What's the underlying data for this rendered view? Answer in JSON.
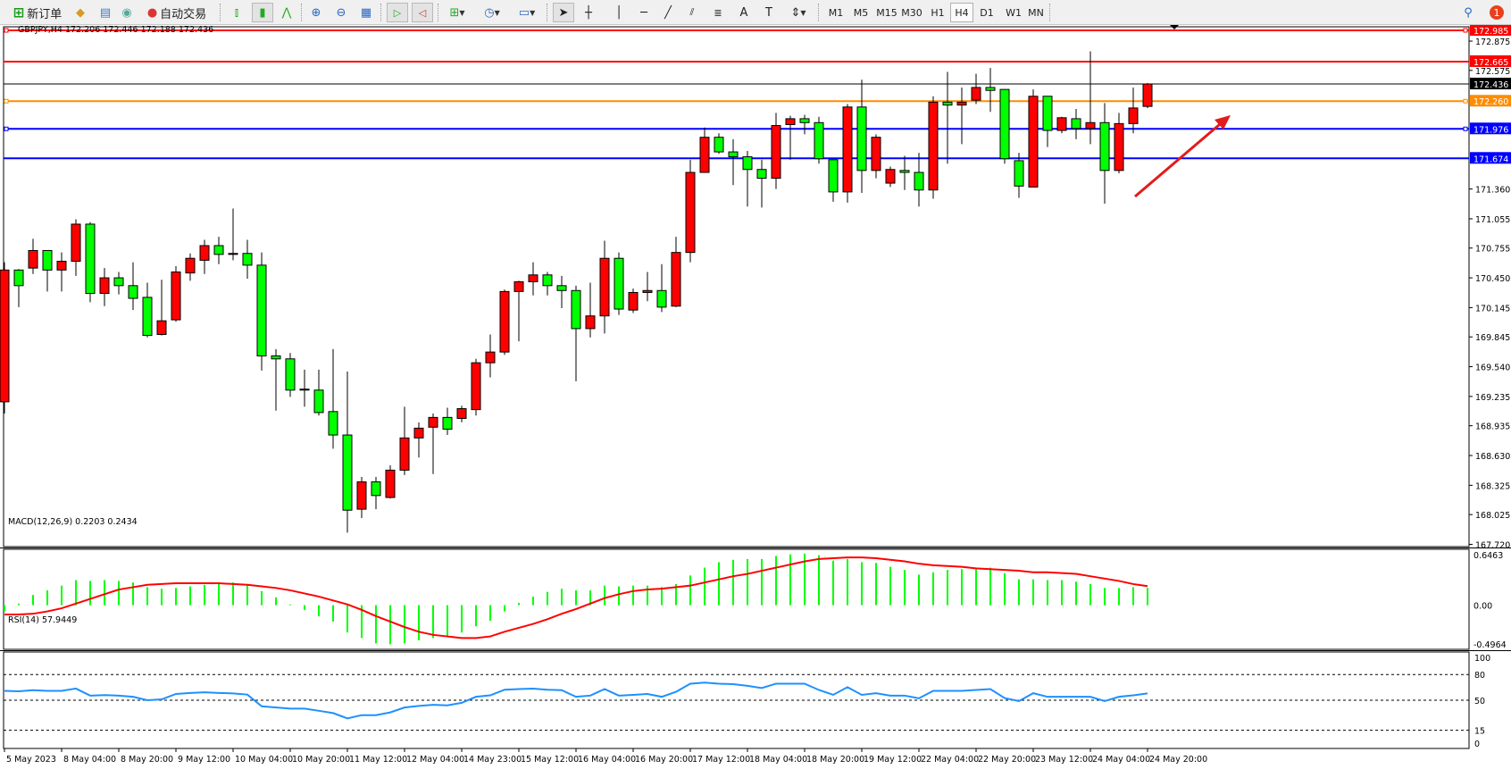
{
  "toolbar": {
    "new_order": "新订单",
    "auto_trading": "自动交易",
    "icons": [
      "new-order-icon",
      "metaeditor-icon",
      "history-icon",
      "signals-icon",
      "auto-trading-icon",
      "bar-chart-icon",
      "candlestick-icon",
      "line-chart-icon",
      "zoom-in-icon",
      "zoom-out-icon",
      "tile-windows-icon",
      "autoscroll-icon",
      "chart-shift-icon",
      "indicators-icon",
      "periods-icon",
      "templates-icon",
      "cursor-icon",
      "crosshair-icon",
      "vertical-line-icon",
      "horizontal-line-icon",
      "trendline-icon",
      "equidistant-channel-icon",
      "fibonacci-icon",
      "text-icon",
      "text-label-icon",
      "arrows-icon",
      "search-icon",
      "notifications-icon"
    ],
    "timeframes": [
      "M1",
      "M5",
      "M15",
      "M30",
      "H1",
      "H4",
      "D1",
      "W1",
      "MN"
    ],
    "selected_timeframe": "H4",
    "notification_count": "1"
  },
  "chart": {
    "header": "GBPJPY,H4  172.206 172.446 172.188 172.436",
    "up_color": "#ff0000",
    "down_color": "#00ff00",
    "price_ticks": [
      "172.875",
      "172.575",
      "171.360",
      "171.055",
      "170.755",
      "170.450",
      "170.145",
      "169.845",
      "169.540",
      "169.235",
      "168.935",
      "168.630",
      "168.325",
      "168.025",
      "167.720"
    ],
    "levels": [
      {
        "price": 172.985,
        "label": "172.985",
        "color": "#ff0000"
      },
      {
        "price": 172.665,
        "label": "172.665",
        "color": "#ff0000"
      },
      {
        "price": 172.436,
        "label": "172.436",
        "color": "#000000"
      },
      {
        "price": 172.26,
        "label": "172.260",
        "color": "#ff8c00"
      },
      {
        "price": 171.976,
        "label": "171.976",
        "color": "#0000ff"
      },
      {
        "price": 171.674,
        "label": "171.674",
        "color": "#0000ff"
      }
    ],
    "time_labels": [
      "5 May 2023",
      "8 May 04:00",
      "8 May 20:00",
      "9 May 12:00",
      "10 May 04:00",
      "10 May 20:00",
      "11 May 12:00",
      "12 May 04:00",
      "14 May 23:00",
      "15 May 12:00",
      "16 May 04:00",
      "16 May 20:00",
      "17 May 12:00",
      "18 May 04:00",
      "18 May 20:00",
      "19 May 12:00",
      "22 May 04:00",
      "22 May 20:00",
      "23 May 12:00",
      "24 May 04:00",
      "24 May 20:00"
    ]
  },
  "chart_data": [
    {
      "type": "candlestick",
      "symbol": "GBPJPY",
      "timeframe": "H4",
      "ylim": [
        167.72,
        172.985
      ],
      "ohlc": [
        [
          169.18,
          170.61,
          169.06,
          170.53
        ],
        [
          170.53,
          170.54,
          170.15,
          170.37
        ],
        [
          170.55,
          170.85,
          170.49,
          170.73
        ],
        [
          170.73,
          170.73,
          170.31,
          170.53
        ],
        [
          170.53,
          170.71,
          170.31,
          170.62
        ],
        [
          170.62,
          171.05,
          170.47,
          171.0
        ],
        [
          171.0,
          171.02,
          170.2,
          170.29
        ],
        [
          170.29,
          170.55,
          170.16,
          170.45
        ],
        [
          170.45,
          170.51,
          170.28,
          170.37
        ],
        [
          170.37,
          170.61,
          170.12,
          170.24
        ],
        [
          170.25,
          170.4,
          169.84,
          169.86
        ],
        [
          169.87,
          170.43,
          169.86,
          170.01
        ],
        [
          170.02,
          170.57,
          170.0,
          170.51
        ],
        [
          170.5,
          170.7,
          170.42,
          170.65
        ],
        [
          170.63,
          170.84,
          170.49,
          170.78
        ],
        [
          170.78,
          170.87,
          170.59,
          170.69
        ],
        [
          170.69,
          171.16,
          170.63,
          170.7
        ],
        [
          170.7,
          170.84,
          170.44,
          170.58
        ],
        [
          170.58,
          170.71,
          169.5,
          169.65
        ],
        [
          169.65,
          169.72,
          169.09,
          169.62
        ],
        [
          169.62,
          169.68,
          169.23,
          169.3
        ],
        [
          169.31,
          169.51,
          169.13,
          169.3
        ],
        [
          169.3,
          169.51,
          169.04,
          169.07
        ],
        [
          169.08,
          169.72,
          168.7,
          168.84
        ],
        [
          168.84,
          169.49,
          167.84,
          168.07
        ],
        [
          168.08,
          168.41,
          167.99,
          168.36
        ],
        [
          168.36,
          168.41,
          168.08,
          168.22
        ],
        [
          168.2,
          168.53,
          168.19,
          168.48
        ],
        [
          168.48,
          169.13,
          168.43,
          168.81
        ],
        [
          168.81,
          168.97,
          168.61,
          168.91
        ],
        [
          168.92,
          169.06,
          168.44,
          169.02
        ],
        [
          169.02,
          169.12,
          168.84,
          168.9
        ],
        [
          169.01,
          169.14,
          168.97,
          169.11
        ],
        [
          169.1,
          169.62,
          169.04,
          169.58
        ],
        [
          169.58,
          169.87,
          169.43,
          169.69
        ],
        [
          169.69,
          170.33,
          169.66,
          170.31
        ],
        [
          170.31,
          170.42,
          169.8,
          170.41
        ],
        [
          170.41,
          170.61,
          170.27,
          170.48
        ],
        [
          170.48,
          170.51,
          170.27,
          170.37
        ],
        [
          170.37,
          170.47,
          170.14,
          170.32
        ],
        [
          170.32,
          170.37,
          169.39,
          169.93
        ],
        [
          169.93,
          170.4,
          169.84,
          170.06
        ],
        [
          170.06,
          170.83,
          169.88,
          170.65
        ],
        [
          170.65,
          170.71,
          170.07,
          170.13
        ],
        [
          170.12,
          170.34,
          170.09,
          170.3
        ],
        [
          170.3,
          170.51,
          170.21,
          170.32
        ],
        [
          170.32,
          170.59,
          170.1,
          170.15
        ],
        [
          170.16,
          170.87,
          170.15,
          170.71
        ],
        [
          170.71,
          171.66,
          170.61,
          171.53
        ],
        [
          171.53,
          171.99,
          171.53,
          171.89
        ],
        [
          171.89,
          171.93,
          171.72,
          171.74
        ],
        [
          171.74,
          171.87,
          171.4,
          171.69
        ],
        [
          171.69,
          171.75,
          171.18,
          171.56
        ],
        [
          171.56,
          171.66,
          171.17,
          171.47
        ],
        [
          171.47,
          172.14,
          171.36,
          172.01
        ],
        [
          172.02,
          172.11,
          171.66,
          172.08
        ],
        [
          172.08,
          172.12,
          171.92,
          172.04
        ],
        [
          172.04,
          172.1,
          171.62,
          171.67
        ],
        [
          171.66,
          171.66,
          171.23,
          171.33
        ],
        [
          171.33,
          172.23,
          171.22,
          172.2
        ],
        [
          172.2,
          172.48,
          171.32,
          171.55
        ],
        [
          171.55,
          171.92,
          171.47,
          171.89
        ],
        [
          171.42,
          171.59,
          171.38,
          171.56
        ],
        [
          171.55,
          171.7,
          171.35,
          171.53
        ],
        [
          171.53,
          171.73,
          171.18,
          171.35
        ],
        [
          171.35,
          172.31,
          171.26,
          172.25
        ],
        [
          172.25,
          172.56,
          171.62,
          172.22
        ],
        [
          172.22,
          172.4,
          171.82,
          172.25
        ],
        [
          172.27,
          172.54,
          172.23,
          172.4
        ],
        [
          172.4,
          172.6,
          172.15,
          172.37
        ],
        [
          172.38,
          172.38,
          171.62,
          171.67
        ],
        [
          171.65,
          171.73,
          171.27,
          171.39
        ],
        [
          171.38,
          172.38,
          171.38,
          172.31
        ],
        [
          172.31,
          172.31,
          171.79,
          171.96
        ],
        [
          171.96,
          172.1,
          171.93,
          172.09
        ],
        [
          172.08,
          172.18,
          171.87,
          171.98
        ],
        [
          171.98,
          172.77,
          171.82,
          172.04
        ],
        [
          172.04,
          172.24,
          171.21,
          171.55
        ],
        [
          171.55,
          172.14,
          171.52,
          172.03
        ],
        [
          172.03,
          172.4,
          171.93,
          172.19
        ],
        [
          172.206,
          172.446,
          172.188,
          172.436
        ]
      ]
    },
    {
      "type": "bar+line",
      "title": "MACD(12,26,9) 0.2203 0.2434",
      "ylim": [
        -0.4964,
        0.6463
      ],
      "tick_labels": [
        "0.6463",
        "0.00",
        "-0.4964"
      ],
      "histogram": [
        -0.08,
        0.02,
        0.13,
        0.19,
        0.25,
        0.32,
        0.31,
        0.32,
        0.31,
        0.29,
        0.23,
        0.21,
        0.22,
        0.24,
        0.26,
        0.29,
        0.29,
        0.27,
        0.18,
        0.1,
        0.01,
        -0.06,
        -0.14,
        -0.21,
        -0.35,
        -0.42,
        -0.49,
        -0.5,
        -0.49,
        -0.45,
        -0.42,
        -0.4,
        -0.35,
        -0.27,
        -0.2,
        -0.08,
        0.03,
        0.11,
        0.17,
        0.21,
        0.19,
        0.19,
        0.25,
        0.24,
        0.25,
        0.25,
        0.23,
        0.27,
        0.38,
        0.48,
        0.55,
        0.58,
        0.59,
        0.59,
        0.63,
        0.65,
        0.66,
        0.64,
        0.57,
        0.59,
        0.55,
        0.54,
        0.49,
        0.45,
        0.39,
        0.42,
        0.45,
        0.46,
        0.46,
        0.48,
        0.41,
        0.33,
        0.33,
        0.32,
        0.32,
        0.3,
        0.27,
        0.22,
        0.22,
        0.23,
        0.2203
      ],
      "signal": [
        -0.12,
        -0.12,
        -0.11,
        -0.08,
        -0.04,
        0.02,
        0.08,
        0.14,
        0.2,
        0.23,
        0.26,
        0.27,
        0.28,
        0.28,
        0.28,
        0.28,
        0.27,
        0.26,
        0.24,
        0.22,
        0.19,
        0.15,
        0.11,
        0.06,
        0.01,
        -0.06,
        -0.14,
        -0.21,
        -0.28,
        -0.34,
        -0.38,
        -0.4,
        -0.42,
        -0.42,
        -0.4,
        -0.34,
        -0.29,
        -0.24,
        -0.18,
        -0.11,
        -0.05,
        0.02,
        0.09,
        0.14,
        0.18,
        0.2,
        0.21,
        0.23,
        0.25,
        0.29,
        0.33,
        0.37,
        0.4,
        0.44,
        0.48,
        0.52,
        0.56,
        0.59,
        0.6,
        0.61,
        0.61,
        0.6,
        0.58,
        0.56,
        0.53,
        0.51,
        0.5,
        0.49,
        0.47,
        0.46,
        0.45,
        0.44,
        0.42,
        0.42,
        0.41,
        0.4,
        0.37,
        0.34,
        0.31,
        0.27,
        0.2434
      ],
      "colors": {
        "histogram": "#00ff00",
        "signal": "#ff0000"
      }
    },
    {
      "type": "line",
      "title": "RSI(14) 57.9449",
      "ylim": [
        0,
        100
      ],
      "levels": [
        80,
        50,
        15
      ],
      "tick_labels": [
        "100",
        "80",
        "50",
        "15",
        "0"
      ],
      "values": [
        61,
        60.4,
        61.7,
        61,
        61,
        63.6,
        55.4,
        56,
        55.4,
        54,
        50,
        51,
        57.3,
        58.5,
        59.2,
        58.5,
        58,
        56.6,
        43,
        41.5,
        40.2,
        40.2,
        37.7,
        35,
        28.8,
        32.6,
        32.6,
        35.8,
        41.5,
        43.4,
        44.6,
        44,
        47,
        54,
        55.7,
        62.3,
        63,
        63.6,
        62.3,
        61.7,
        54,
        55.4,
        63,
        55.4,
        56.3,
        57.3,
        54,
        59.8,
        69.3,
        70.6,
        69.3,
        68.7,
        66.8,
        64.2,
        69.3,
        69.3,
        69.3,
        62,
        56.3,
        65.2,
        56.3,
        58.2,
        55.4,
        55.4,
        52.2,
        61,
        61,
        61,
        62,
        63,
        52.5,
        49,
        58.2,
        54,
        54,
        54,
        54,
        49,
        54,
        55.7,
        57.9449
      ],
      "color": "#1e90ff"
    }
  ]
}
